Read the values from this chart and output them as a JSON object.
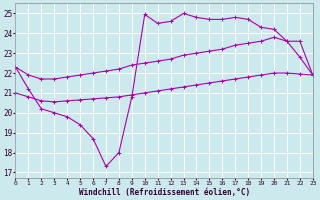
{
  "xlabel": "Windchill (Refroidissement éolien,°C)",
  "background_color": "#cce9ee",
  "grid_color": "#b8dde4",
  "line_color": "#aa00aa",
  "x_ticks": [
    0,
    1,
    2,
    3,
    4,
    5,
    6,
    7,
    8,
    9,
    10,
    11,
    12,
    13,
    14,
    15,
    16,
    17,
    18,
    19,
    20,
    21,
    22,
    23
  ],
  "y_ticks": [
    17,
    18,
    19,
    20,
    21,
    22,
    23,
    24,
    25
  ],
  "xlim": [
    0,
    23
  ],
  "ylim": [
    16.7,
    25.5
  ],
  "line1_x": [
    0,
    1,
    2,
    3,
    4,
    5,
    6,
    7,
    8,
    9,
    10,
    11,
    12,
    13,
    14,
    15,
    16,
    17,
    18,
    19,
    20,
    21,
    22,
    23
  ],
  "line1_y": [
    22.3,
    21.2,
    20.2,
    20.0,
    19.8,
    19.4,
    18.7,
    17.3,
    18.0,
    20.8,
    24.95,
    24.5,
    24.6,
    25.0,
    24.8,
    24.7,
    24.7,
    24.8,
    24.7,
    24.3,
    24.2,
    23.6,
    22.8,
    21.9
  ],
  "line2_x": [
    0,
    1,
    2,
    3,
    4,
    5,
    6,
    7,
    8,
    9,
    10,
    11,
    12,
    13,
    14,
    15,
    16,
    17,
    18,
    19,
    20,
    21,
    22,
    23
  ],
  "line2_y": [
    22.3,
    21.9,
    21.7,
    21.7,
    21.8,
    21.9,
    22.0,
    22.1,
    22.2,
    22.4,
    22.5,
    22.6,
    22.7,
    22.9,
    23.0,
    23.1,
    23.2,
    23.4,
    23.5,
    23.6,
    23.8,
    23.6,
    23.6,
    21.9
  ],
  "line3_x": [
    0,
    1,
    2,
    3,
    4,
    5,
    6,
    7,
    8,
    9,
    10,
    11,
    12,
    13,
    14,
    15,
    16,
    17,
    18,
    19,
    20,
    21,
    22,
    23
  ],
  "line3_y": [
    21.0,
    20.8,
    20.6,
    20.55,
    20.6,
    20.65,
    20.7,
    20.75,
    20.8,
    20.9,
    21.0,
    21.1,
    21.2,
    21.3,
    21.4,
    21.5,
    21.6,
    21.7,
    21.8,
    21.9,
    22.0,
    22.0,
    21.95,
    21.9
  ]
}
